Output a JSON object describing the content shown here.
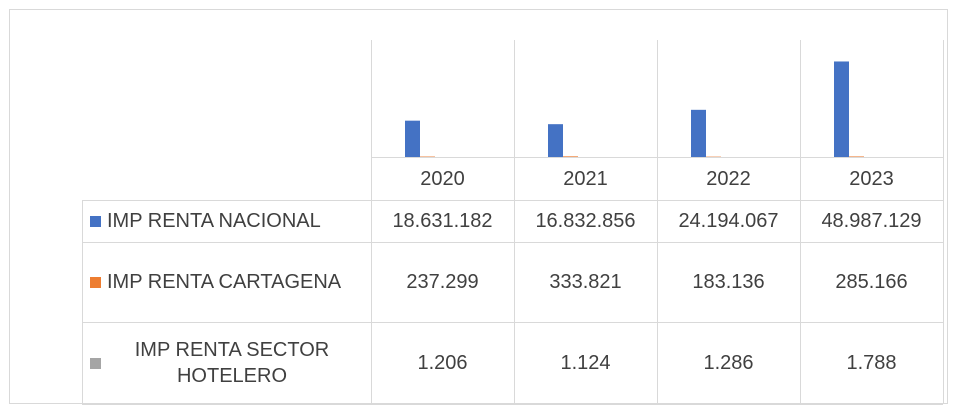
{
  "chart_data": {
    "type": "bar",
    "categories": [
      "2020",
      "2021",
      "2022",
      "2023"
    ],
    "series": [
      {
        "name": "IMP RENTA NACIONAL",
        "color": "#4472c4",
        "values": [
          18631182,
          16832856,
          24194067,
          48987129
        ],
        "value_labels": [
          "18.631.182",
          "16.832.856",
          "24.194.067",
          "48.987.129"
        ]
      },
      {
        "name": "IMP RENTA CARTAGENA",
        "color": "#ed7d31",
        "values": [
          237299,
          333821,
          183136,
          285166
        ],
        "value_labels": [
          "237.299",
          "333.821",
          "183.136",
          "285.166"
        ]
      },
      {
        "name": "IMP RENTA SECTOR HOTELERO",
        "color": "#a5a5a5",
        "values": [
          1206,
          1124,
          1286,
          1788
        ],
        "value_labels": [
          "1.206",
          "1.124",
          "1.286",
          "1.788"
        ]
      }
    ],
    "ylim": [
      0,
      60000000
    ]
  }
}
